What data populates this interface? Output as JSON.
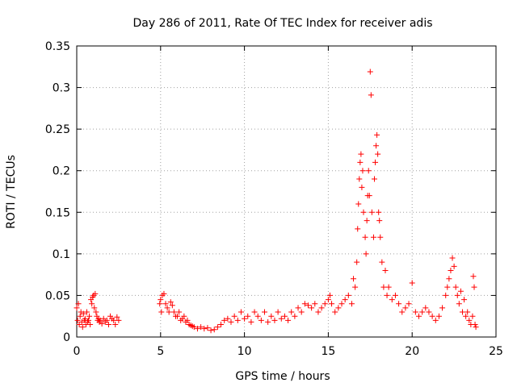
{
  "chart_data": {
    "type": "scatter",
    "title": "Day 286 of 2011, Rate Of TEC Index for receiver adis",
    "xlabel": "GPS time / hours",
    "ylabel": "ROTI / TECUs",
    "xlim": [
      0,
      25
    ],
    "ylim": [
      0,
      0.35
    ],
    "x_ticks": [
      0,
      5,
      10,
      15,
      20,
      25
    ],
    "y_ticks": [
      0,
      0.05,
      0.1,
      0.15,
      0.2,
      0.25,
      0.3,
      0.35
    ],
    "x_tick_labels": [
      "0",
      "5",
      "10",
      "15",
      "20",
      "25"
    ],
    "y_tick_labels": [
      "0",
      "0.05",
      "0.1",
      "0.15",
      "0.2",
      "0.25",
      "0.3",
      "0.35"
    ],
    "grid": true,
    "marker": "+",
    "marker_color": "#ff0000",
    "series": [
      {
        "points": [
          [
            0.0,
            0.035
          ],
          [
            0.05,
            0.02
          ],
          [
            0.1,
            0.04
          ],
          [
            0.15,
            0.015
          ],
          [
            0.2,
            0.025
          ],
          [
            0.25,
            0.03
          ],
          [
            0.3,
            0.018
          ],
          [
            0.35,
            0.012
          ],
          [
            0.4,
            0.028
          ],
          [
            0.45,
            0.02
          ],
          [
            0.5,
            0.022
          ],
          [
            0.55,
            0.015
          ],
          [
            0.6,
            0.03
          ],
          [
            0.65,
            0.018
          ],
          [
            0.7,
            0.02
          ],
          [
            0.75,
            0.025
          ],
          [
            0.8,
            0.015
          ],
          [
            0.85,
            0.045
          ],
          [
            0.9,
            0.04
          ],
          [
            0.95,
            0.048
          ],
          [
            1.0,
            0.05
          ],
          [
            1.05,
            0.035
          ],
          [
            1.1,
            0.052
          ],
          [
            1.15,
            0.03
          ],
          [
            1.2,
            0.025
          ],
          [
            1.25,
            0.02
          ],
          [
            1.3,
            0.022
          ],
          [
            1.35,
            0.018
          ],
          [
            1.4,
            0.02
          ],
          [
            1.5,
            0.016
          ],
          [
            1.6,
            0.022
          ],
          [
            1.7,
            0.018
          ],
          [
            1.8,
            0.02
          ],
          [
            1.9,
            0.015
          ],
          [
            2.0,
            0.025
          ],
          [
            2.1,
            0.022
          ],
          [
            2.2,
            0.02
          ],
          [
            2.3,
            0.015
          ],
          [
            2.4,
            0.024
          ],
          [
            2.5,
            0.02
          ],
          [
            4.95,
            0.04
          ],
          [
            5.0,
            0.045
          ],
          [
            5.05,
            0.03
          ],
          [
            5.1,
            0.05
          ],
          [
            5.2,
            0.052
          ],
          [
            5.3,
            0.04
          ],
          [
            5.4,
            0.035
          ],
          [
            5.5,
            0.03
          ],
          [
            5.6,
            0.042
          ],
          [
            5.7,
            0.038
          ],
          [
            5.8,
            0.03
          ],
          [
            5.9,
            0.025
          ],
          [
            6.0,
            0.025
          ],
          [
            6.1,
            0.03
          ],
          [
            6.2,
            0.02
          ],
          [
            6.3,
            0.022
          ],
          [
            6.4,
            0.025
          ],
          [
            6.5,
            0.018
          ],
          [
            6.6,
            0.02
          ],
          [
            6.7,
            0.015
          ],
          [
            6.8,
            0.014
          ],
          [
            6.9,
            0.013
          ],
          [
            7.0,
            0.012
          ],
          [
            7.2,
            0.01
          ],
          [
            7.4,
            0.012
          ],
          [
            7.6,
            0.01
          ],
          [
            7.8,
            0.011
          ],
          [
            8.0,
            0.008
          ],
          [
            8.2,
            0.009
          ],
          [
            8.4,
            0.012
          ],
          [
            8.6,
            0.015
          ],
          [
            8.8,
            0.02
          ],
          [
            9.0,
            0.022
          ],
          [
            9.2,
            0.018
          ],
          [
            9.4,
            0.025
          ],
          [
            9.6,
            0.02
          ],
          [
            9.8,
            0.03
          ],
          [
            10.0,
            0.022
          ],
          [
            10.2,
            0.025
          ],
          [
            10.4,
            0.018
          ],
          [
            10.6,
            0.03
          ],
          [
            10.8,
            0.025
          ],
          [
            11.0,
            0.02
          ],
          [
            11.2,
            0.03
          ],
          [
            11.4,
            0.018
          ],
          [
            11.6,
            0.025
          ],
          [
            11.8,
            0.02
          ],
          [
            12.0,
            0.03
          ],
          [
            12.2,
            0.022
          ],
          [
            12.4,
            0.025
          ],
          [
            12.6,
            0.02
          ],
          [
            12.8,
            0.03
          ],
          [
            13.0,
            0.025
          ],
          [
            13.2,
            0.035
          ],
          [
            13.4,
            0.03
          ],
          [
            13.6,
            0.04
          ],
          [
            13.8,
            0.038
          ],
          [
            14.0,
            0.035
          ],
          [
            14.2,
            0.04
          ],
          [
            14.4,
            0.03
          ],
          [
            14.6,
            0.035
          ],
          [
            14.8,
            0.04
          ],
          [
            15.0,
            0.045
          ],
          [
            15.1,
            0.05
          ],
          [
            15.2,
            0.04
          ],
          [
            15.4,
            0.03
          ],
          [
            15.6,
            0.035
          ],
          [
            15.8,
            0.04
          ],
          [
            16.0,
            0.045
          ],
          [
            16.2,
            0.05
          ],
          [
            16.4,
            0.04
          ],
          [
            16.5,
            0.07
          ],
          [
            16.6,
            0.06
          ],
          [
            16.7,
            0.09
          ],
          [
            16.75,
            0.13
          ],
          [
            16.8,
            0.16
          ],
          [
            16.85,
            0.19
          ],
          [
            16.9,
            0.21
          ],
          [
            16.95,
            0.22
          ],
          [
            17.0,
            0.18
          ],
          [
            17.05,
            0.2
          ],
          [
            17.1,
            0.15
          ],
          [
            17.2,
            0.12
          ],
          [
            17.25,
            0.1
          ],
          [
            17.3,
            0.14
          ],
          [
            17.35,
            0.17
          ],
          [
            17.4,
            0.2
          ],
          [
            17.45,
            0.17
          ],
          [
            17.5,
            0.319
          ],
          [
            17.55,
            0.291
          ],
          [
            17.6,
            0.15
          ],
          [
            17.7,
            0.12
          ],
          [
            17.75,
            0.19
          ],
          [
            17.8,
            0.21
          ],
          [
            17.85,
            0.23
          ],
          [
            17.9,
            0.243
          ],
          [
            17.95,
            0.22
          ],
          [
            18.0,
            0.15
          ],
          [
            18.05,
            0.14
          ],
          [
            18.1,
            0.12
          ],
          [
            18.2,
            0.09
          ],
          [
            18.3,
            0.06
          ],
          [
            18.4,
            0.08
          ],
          [
            18.5,
            0.05
          ],
          [
            18.6,
            0.06
          ],
          [
            18.8,
            0.045
          ],
          [
            19.0,
            0.05
          ],
          [
            19.2,
            0.04
          ],
          [
            19.4,
            0.03
          ],
          [
            19.6,
            0.035
          ],
          [
            19.8,
            0.04
          ],
          [
            20.0,
            0.065
          ],
          [
            20.2,
            0.03
          ],
          [
            20.4,
            0.025
          ],
          [
            20.6,
            0.03
          ],
          [
            20.8,
            0.035
          ],
          [
            21.0,
            0.03
          ],
          [
            21.2,
            0.025
          ],
          [
            21.4,
            0.02
          ],
          [
            21.6,
            0.025
          ],
          [
            21.8,
            0.035
          ],
          [
            22.0,
            0.05
          ],
          [
            22.1,
            0.06
          ],
          [
            22.2,
            0.07
          ],
          [
            22.3,
            0.08
          ],
          [
            22.4,
            0.095
          ],
          [
            22.5,
            0.085
          ],
          [
            22.6,
            0.06
          ],
          [
            22.7,
            0.05
          ],
          [
            22.8,
            0.04
          ],
          [
            22.9,
            0.055
          ],
          [
            23.0,
            0.03
          ],
          [
            23.1,
            0.045
          ],
          [
            23.2,
            0.025
          ],
          [
            23.3,
            0.03
          ],
          [
            23.4,
            0.02
          ],
          [
            23.5,
            0.015
          ],
          [
            23.6,
            0.025
          ],
          [
            23.65,
            0.073
          ],
          [
            23.7,
            0.06
          ],
          [
            23.75,
            0.015
          ],
          [
            23.8,
            0.012
          ]
        ]
      }
    ]
  }
}
